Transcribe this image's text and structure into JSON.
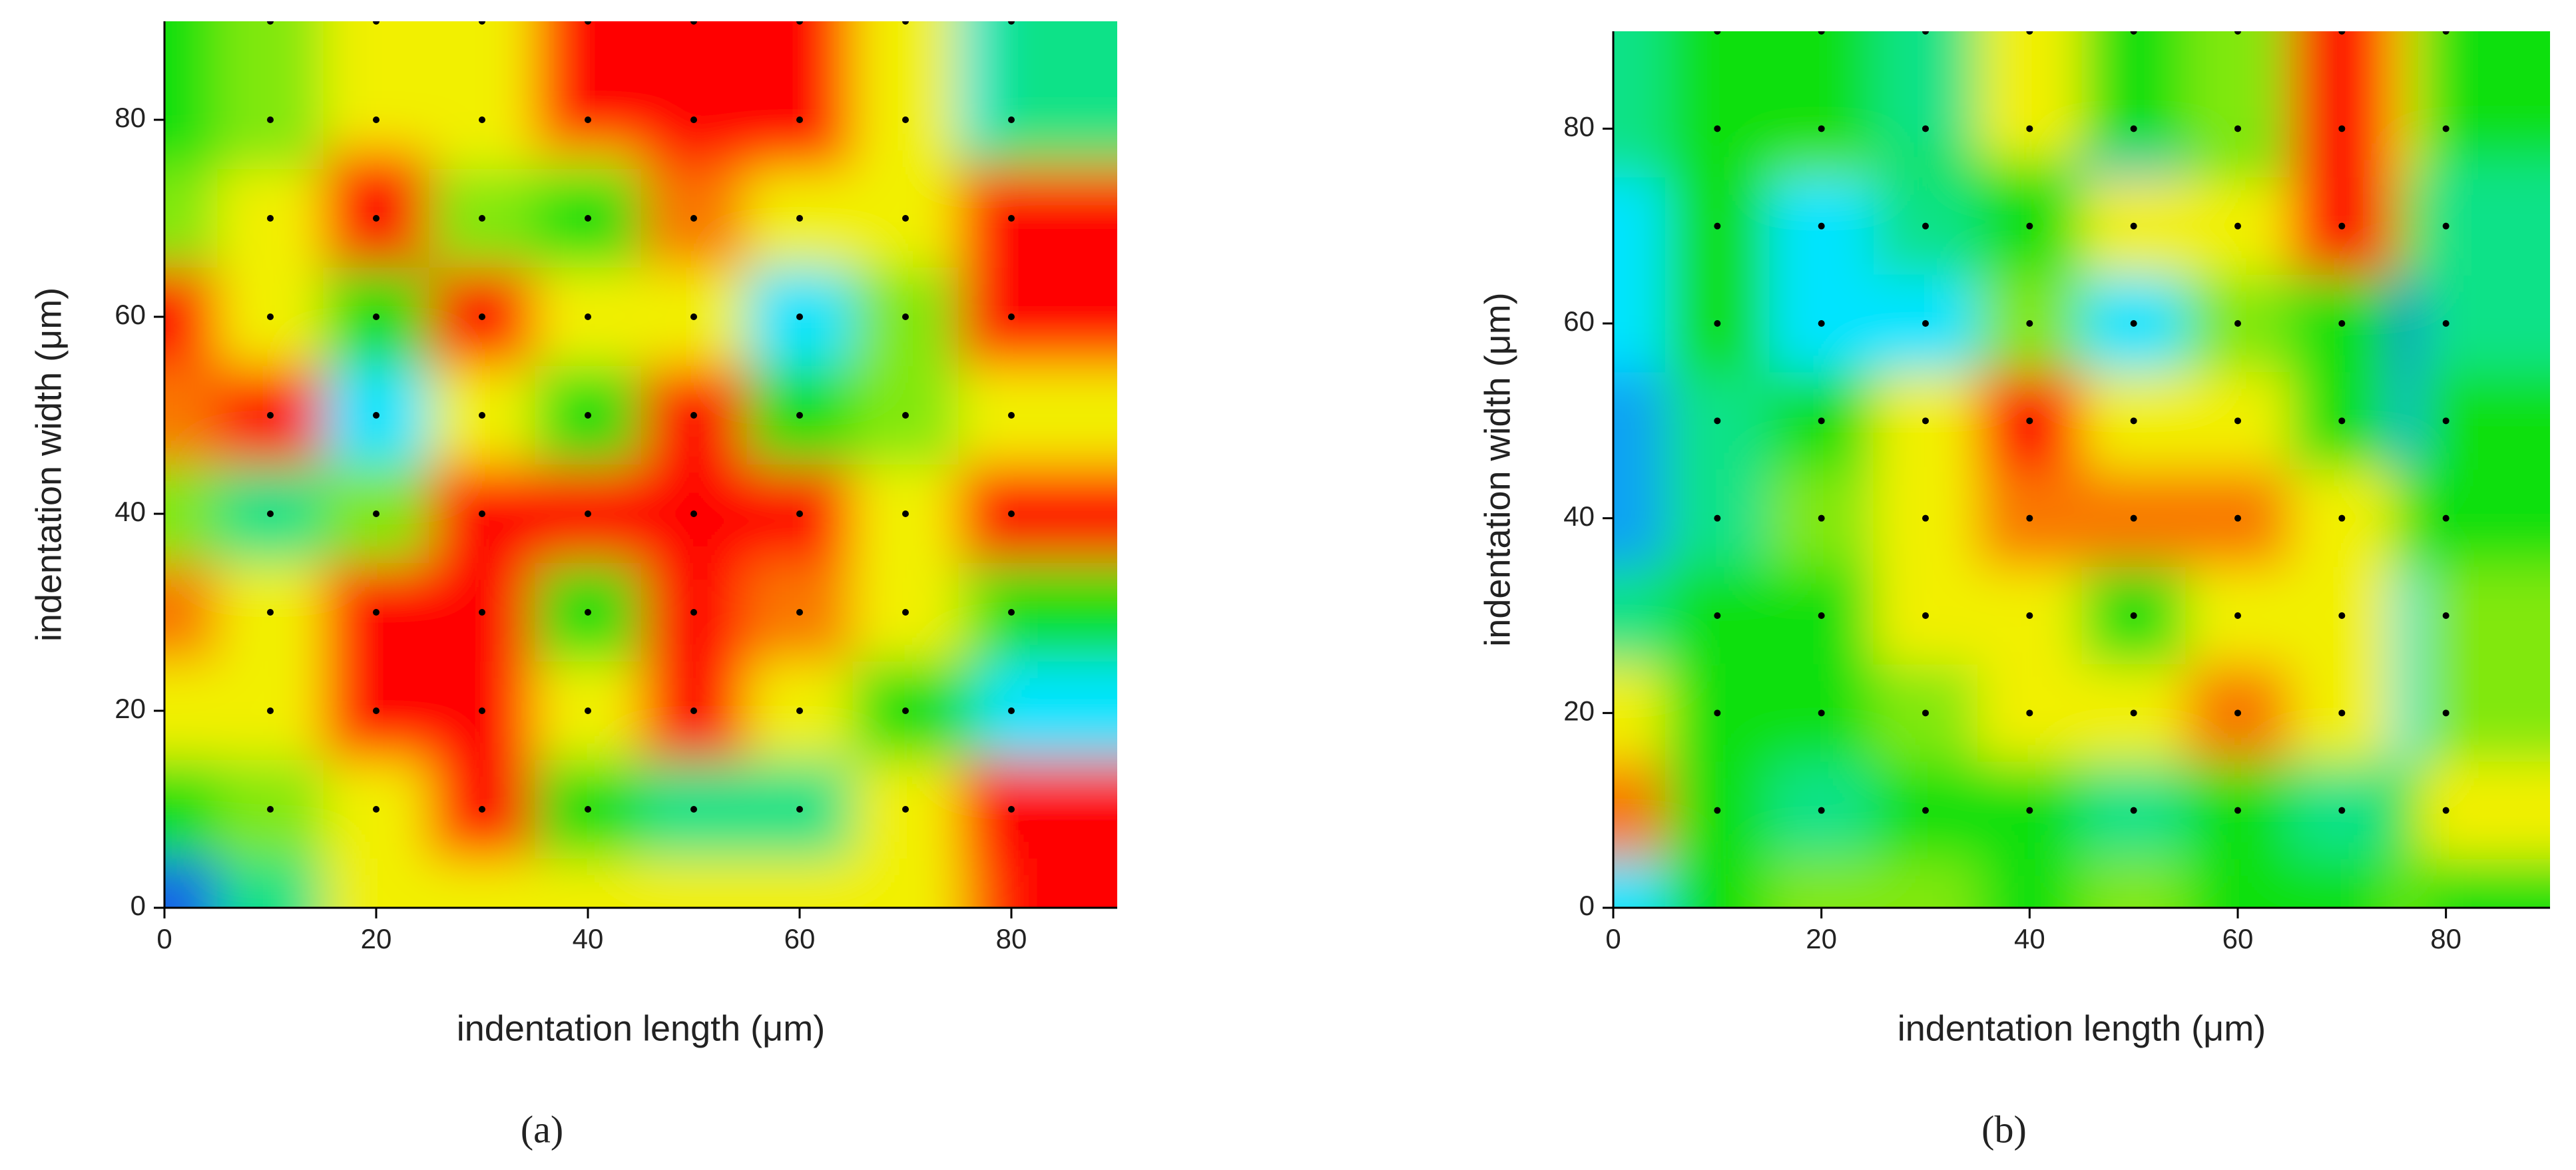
{
  "chart_data": [
    {
      "type": "heatmap",
      "caption": "(a)",
      "xlabel": "indentation length (μm)",
      "ylabel": "indentation width (μm)",
      "xlim": [
        0,
        90
      ],
      "ylim": [
        0,
        90
      ],
      "xticks": [
        0,
        20,
        40,
        60,
        80
      ],
      "yticks": [
        0,
        20,
        40,
        60,
        80
      ],
      "colorscale": [
        "#1560e8",
        "#00e4ff",
        "#10e010",
        "#f2f000",
        "#ff0000"
      ],
      "x": [
        0,
        10,
        20,
        30,
        40,
        50,
        60,
        70,
        80,
        90
      ],
      "y": [
        0,
        10,
        20,
        30,
        40,
        50,
        60,
        70,
        80,
        90
      ],
      "z": [
        [
          0,
          1.5,
          3,
          3,
          3,
          3,
          3,
          3,
          3.5,
          4
        ],
        [
          2,
          2.5,
          3,
          4,
          2,
          1.5,
          1.5,
          3,
          4,
          4
        ],
        [
          3,
          3,
          4,
          4,
          3,
          4,
          3,
          2,
          1.5,
          1
        ],
        [
          3.5,
          3,
          4,
          4,
          2,
          4,
          3.5,
          3,
          2.5,
          2
        ],
        [
          2.5,
          1.5,
          2.5,
          4,
          4,
          4,
          4,
          3,
          4,
          4
        ],
        [
          3.5,
          4,
          1,
          3,
          2,
          4,
          2,
          2.5,
          3,
          3
        ],
        [
          4,
          3,
          2,
          4,
          3,
          3,
          1,
          2.5,
          4,
          4
        ],
        [
          2.5,
          3,
          4,
          2.5,
          2,
          3.5,
          3,
          3,
          4,
          4
        ],
        [
          2,
          2.5,
          4,
          3,
          3,
          4,
          4,
          3,
          2,
          2.5
        ],
        [
          2,
          2.5,
          3,
          3,
          4,
          4,
          4,
          3,
          1,
          1.5
        ]
      ],
      "point_x": [
        10,
        20,
        30,
        40,
        50,
        60,
        70,
        80
      ],
      "point_y": [
        10,
        20,
        30,
        40,
        50,
        60,
        70,
        80,
        90
      ]
    },
    {
      "type": "heatmap",
      "caption": "(b)",
      "xlabel": "indentation length (μm)",
      "ylabel": "indentation width (μm)",
      "xlim": [
        0,
        90
      ],
      "ylim": [
        0,
        90
      ],
      "xticks": [
        0,
        20,
        40,
        60,
        80
      ],
      "yticks": [
        0,
        20,
        40,
        60,
        80
      ],
      "colorscale": [
        "#1560e8",
        "#00e4ff",
        "#10e010",
        "#f2f000",
        "#ff0000"
      ],
      "x": [
        0,
        10,
        20,
        30,
        40,
        50,
        60,
        70,
        80,
        90
      ],
      "y": [
        0,
        10,
        20,
        30,
        40,
        50,
        60,
        70,
        80,
        90
      ],
      "z": [
        [
          1,
          2,
          2.5,
          2.5,
          2,
          2.5,
          2,
          2,
          2.5,
          2
        ],
        [
          3.5,
          2,
          1.5,
          2,
          2,
          1.5,
          2,
          1.5,
          2,
          3
        ],
        [
          3,
          2,
          2,
          2.5,
          3,
          3,
          3.5,
          3,
          1,
          2.5
        ],
        [
          1.5,
          2,
          2,
          3,
          3,
          2,
          3,
          3,
          1,
          2.5
        ],
        [
          0.5,
          1.5,
          2.5,
          3,
          3.5,
          3.5,
          3.5,
          3,
          2,
          2
        ],
        [
          0.5,
          1.5,
          2,
          3,
          4,
          3,
          3,
          2,
          0.5,
          2
        ],
        [
          1,
          2,
          1,
          1,
          2.5,
          1,
          2.5,
          2,
          0,
          1.5
        ],
        [
          1,
          2,
          1,
          1.5,
          2,
          3,
          3,
          4,
          2.5,
          1.5
        ],
        [
          1.5,
          2,
          2.5,
          2,
          2,
          0.5,
          2,
          4,
          3,
          1.5
        ],
        [
          1.5,
          2,
          2,
          1.5,
          3,
          2,
          2.5,
          4,
          3,
          2
        ]
      ],
      "point_x": [
        10,
        20,
        30,
        40,
        50,
        60,
        70,
        80
      ],
      "point_y": [
        10,
        20,
        30,
        40,
        50,
        60,
        70,
        80,
        90
      ]
    }
  ]
}
